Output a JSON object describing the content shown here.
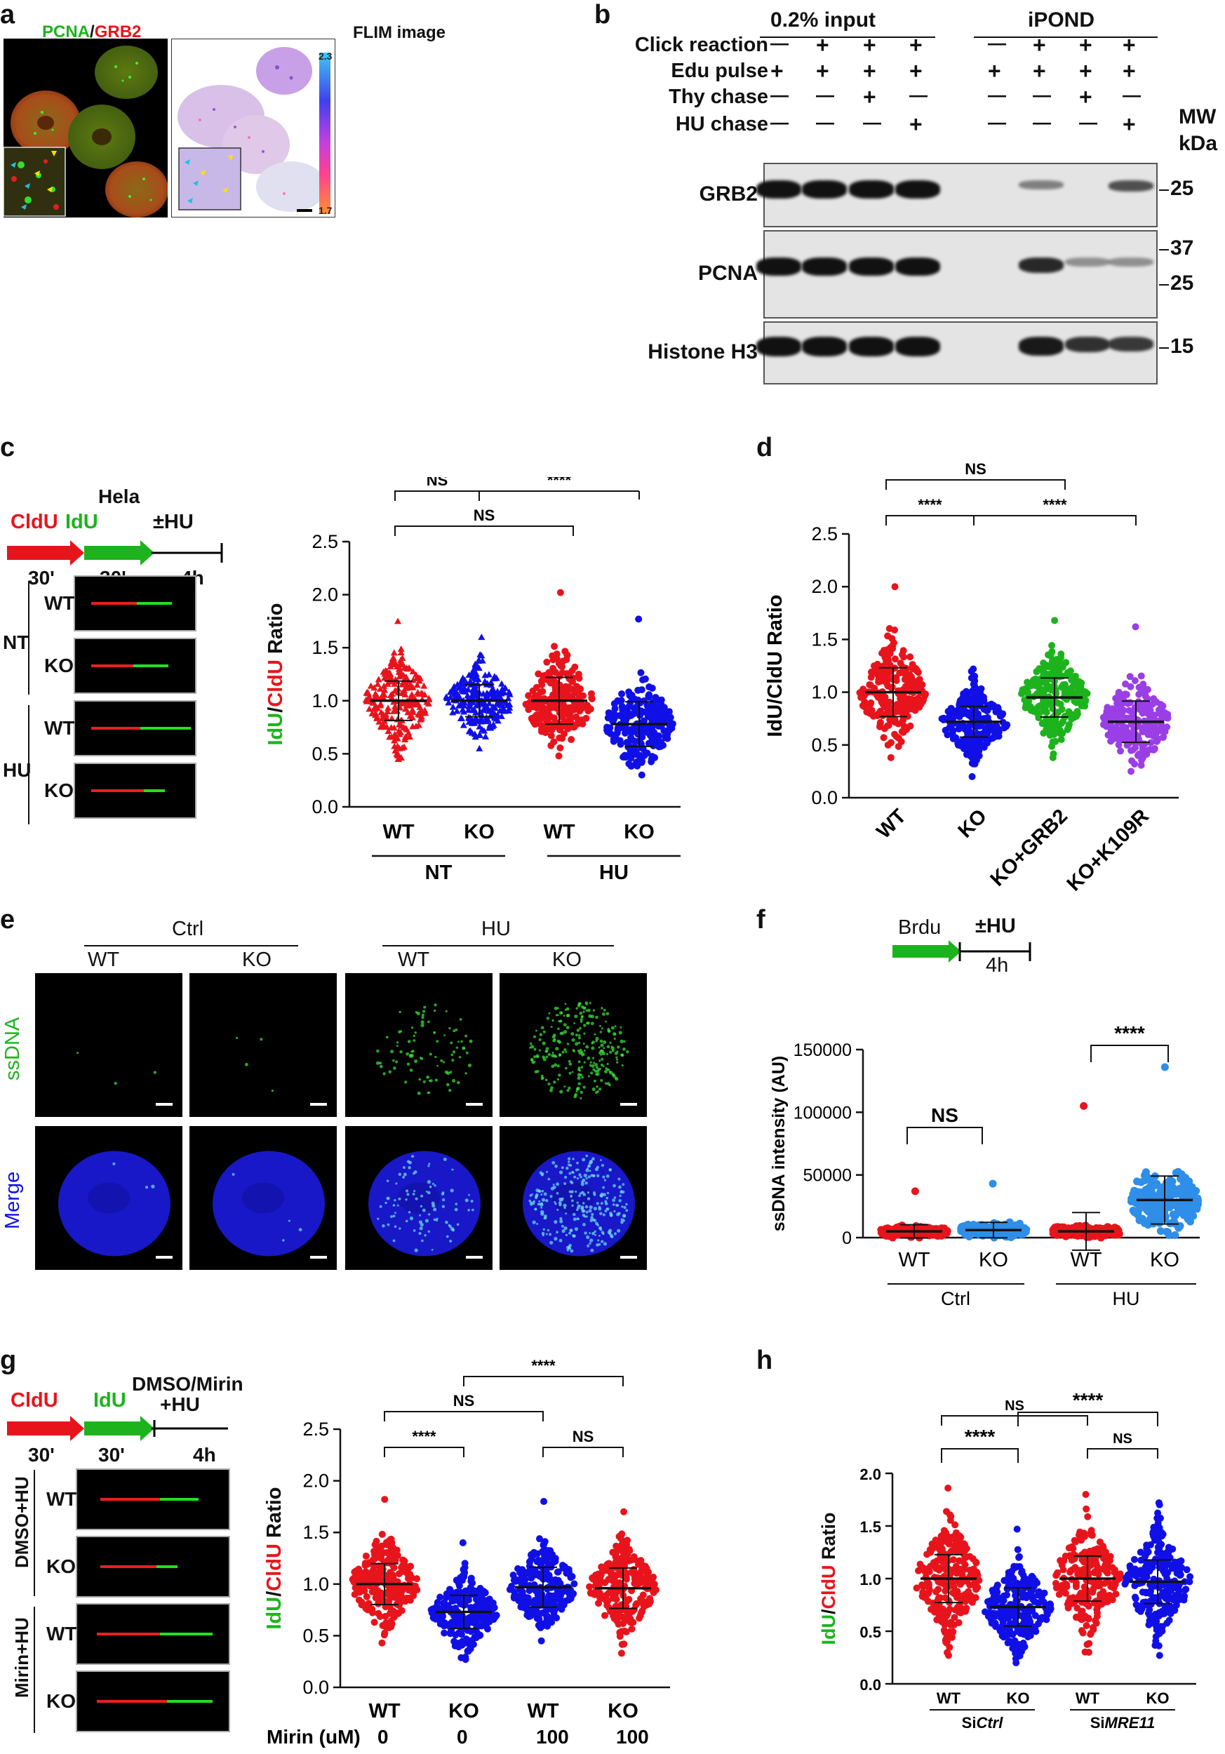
{
  "panel_labels": {
    "a": "a",
    "b": "b",
    "c": "c",
    "d": "d",
    "e": "e",
    "f": "f",
    "g": "g",
    "h": "h"
  },
  "a": {
    "left_title_green": "PCNA",
    "left_title_sep": "/",
    "left_title_red": "GRB2",
    "right_title": "FLIM image",
    "scale_max": "2.3",
    "scale_min": "1.7"
  },
  "b": {
    "group1": "0.2% input",
    "group2": "iPOND",
    "rows": [
      {
        "label": "Click reaction",
        "signs": [
          "—",
          "+",
          "+",
          "+",
          "—",
          "+",
          "+",
          "+"
        ]
      },
      {
        "label": "Edu pulse",
        "signs": [
          "+",
          "+",
          "+",
          "+",
          "+",
          "+",
          "+",
          "+"
        ]
      },
      {
        "label": "Thy chase",
        "signs": [
          "—",
          "—",
          "+",
          "—",
          "—",
          "—",
          "+",
          "—"
        ]
      },
      {
        "label": "HU chase",
        "signs": [
          "—",
          "—",
          "—",
          "+",
          "—",
          "—",
          "—",
          "+"
        ]
      }
    ],
    "mw_label": "MW",
    "kda_label": "kDa",
    "blots": [
      {
        "name": "GRB2",
        "markers": [
          "25"
        ]
      },
      {
        "name": "PCNA",
        "markers": [
          "37",
          "25"
        ]
      },
      {
        "name": "Histone H3",
        "markers": [
          "15"
        ]
      }
    ]
  },
  "c": {
    "cell_line": "Hela",
    "seg1": "CldU",
    "seg2": "IdU",
    "seg3": "±HU",
    "t1": "30'",
    "t2": "30'",
    "t3": "4h",
    "row_groups": [
      "NT",
      "HU"
    ],
    "row_labels": [
      "WT",
      "KO",
      "WT",
      "KO"
    ]
  },
  "e": {
    "groups": [
      "Ctrl",
      "HU"
    ],
    "cols": [
      "WT",
      "KO",
      "WT",
      "KO"
    ],
    "rows": [
      "ssDNA",
      "Merge"
    ]
  },
  "f": {
    "seg1": "Brdu",
    "seg2": "±HU",
    "t2": "4h"
  },
  "g": {
    "seg1": "CldU",
    "seg2": "IdU",
    "seg3a": "DMSO/Mirin",
    "seg3b": "+HU",
    "t1": "30'",
    "t2": "30'",
    "t3": "4h",
    "row_groups": [
      "DMSO+HU",
      "Mirin+HU"
    ],
    "row_labels": [
      "WT",
      "KO",
      "WT",
      "KO"
    ]
  },
  "colors": {
    "red": "#e8141c",
    "green": "#1db31d",
    "blue": "#1010e6",
    "purple": "#9a3ee6",
    "lightblue": "#2e8ee8"
  },
  "chart_data": [
    {
      "id": "c",
      "type": "scatter",
      "ylabel": "IdU/CldU Ratio",
      "ylabel_parts": [
        "IdU",
        "/",
        "CldU",
        " Ratio"
      ],
      "ylim": [
        0,
        2.5
      ],
      "yticks": [
        "0.0",
        "0.5",
        "1.0",
        "1.5",
        "2.0",
        "2.5"
      ],
      "categories": [
        "WT",
        "KO",
        "WT",
        "KO"
      ],
      "groups": [
        "NT",
        "HU"
      ],
      "series": [
        {
          "category": "WT",
          "group": "NT",
          "color": "red",
          "marker": "triangle",
          "median": 1.0,
          "min": 0.45,
          "max": 1.75
        },
        {
          "category": "KO",
          "group": "NT",
          "color": "blue",
          "marker": "triangle",
          "median": 1.0,
          "min": 0.55,
          "max": 1.6
        },
        {
          "category": "WT",
          "group": "HU",
          "color": "red",
          "marker": "circle",
          "median": 1.0,
          "min": 0.48,
          "max": 2.02
        },
        {
          "category": "KO",
          "group": "HU",
          "color": "blue",
          "marker": "circle",
          "median": 0.78,
          "min": 0.3,
          "max": 1.77
        }
      ],
      "annotations": [
        "NS",
        "****",
        "NS"
      ]
    },
    {
      "id": "d",
      "type": "scatter",
      "ylabel": "IdU/CldU Ratio",
      "ylim": [
        0,
        2.5
      ],
      "yticks": [
        "0.0",
        "0.5",
        "1.0",
        "1.5",
        "2.0",
        "2.5"
      ],
      "categories": [
        "WT",
        "KO",
        "KO+GRB2",
        "KO+K109R"
      ],
      "series": [
        {
          "category": "WT",
          "color": "red",
          "median": 1.0,
          "min": 0.38,
          "max": 2.0
        },
        {
          "category": "KO",
          "color": "blue",
          "median": 0.72,
          "min": 0.2,
          "max": 1.22
        },
        {
          "category": "KO+GRB2",
          "color": "green",
          "median": 0.95,
          "min": 0.38,
          "max": 1.68
        },
        {
          "category": "KO+K109R",
          "color": "purple",
          "median": 0.72,
          "min": 0.25,
          "max": 1.62
        }
      ],
      "annotations": [
        "NS",
        "****",
        "****"
      ]
    },
    {
      "id": "f",
      "type": "scatter",
      "ylabel": "ssDNA intensity (AU)",
      "ylim": [
        0,
        150000
      ],
      "yticks": [
        "0",
        "50000",
        "100000",
        "150000"
      ],
      "categories": [
        "WT",
        "KO",
        "WT",
        "KO"
      ],
      "groups": [
        "Ctrl",
        "HU"
      ],
      "series": [
        {
          "category": "WT",
          "group": "Ctrl",
          "color": "red",
          "median": 5000,
          "min": 0,
          "max": 37000
        },
        {
          "category": "KO",
          "group": "Ctrl",
          "color": "lightblue",
          "median": 6000,
          "min": 0,
          "max": 43000
        },
        {
          "category": "WT",
          "group": "HU",
          "color": "red",
          "median": 5000,
          "min": 0,
          "max": 105000
        },
        {
          "category": "KO",
          "group": "HU",
          "color": "lightblue",
          "median": 30000,
          "min": 2000,
          "max": 136000
        }
      ],
      "annotations": [
        "NS",
        "****"
      ]
    },
    {
      "id": "g",
      "type": "scatter",
      "ylabel": "IdU/CldU Ratio",
      "ylabel_parts": [
        "IdU",
        "/",
        "CldU",
        " Ratio"
      ],
      "ylim": [
        0,
        2.5
      ],
      "yticks": [
        "0.0",
        "0.5",
        "1.0",
        "1.5",
        "2.0",
        "2.5"
      ],
      "categories": [
        "WT",
        "KO",
        "WT",
        "KO"
      ],
      "row_label": "Mirin (uM)",
      "row_values": [
        "0",
        "0",
        "100",
        "100"
      ],
      "series": [
        {
          "category": "WT",
          "mirin": "0",
          "color": "red",
          "median": 1.0,
          "min": 0.43,
          "max": 1.82
        },
        {
          "category": "KO",
          "mirin": "0",
          "color": "blue",
          "median": 0.73,
          "min": 0.27,
          "max": 1.4
        },
        {
          "category": "WT",
          "mirin": "100",
          "color": "blue",
          "median": 0.97,
          "min": 0.45,
          "max": 1.8
        },
        {
          "category": "KO",
          "mirin": "100",
          "color": "red",
          "median": 0.96,
          "min": 0.33,
          "max": 1.7
        }
      ],
      "annotations": [
        "NS",
        "****",
        "****",
        "NS"
      ]
    },
    {
      "id": "h",
      "type": "scatter",
      "ylabel": "IdU/CldU Ratio",
      "ylabel_parts": [
        "IdU",
        "/",
        "CldU",
        " Ratio"
      ],
      "ylim": [
        0,
        2.0
      ],
      "yticks": [
        "0.0",
        "0.5",
        "1.0",
        "1.5",
        "2.0"
      ],
      "categories": [
        "WT",
        "KO",
        "WT",
        "KO"
      ],
      "groups_parts": [
        [
          "Si",
          "Ctrl"
        ],
        [
          "Si",
          "MRE11"
        ]
      ],
      "series": [
        {
          "category": "WT",
          "group": "SiCtrl",
          "color": "red",
          "median": 1.0,
          "min": 0.27,
          "max": 1.86
        },
        {
          "category": "KO",
          "group": "SiCtrl",
          "color": "blue",
          "median": 0.73,
          "min": 0.2,
          "max": 1.47
        },
        {
          "category": "WT",
          "group": "SiMRE11",
          "color": "red",
          "median": 1.0,
          "min": 0.3,
          "max": 1.8
        },
        {
          "category": "KO",
          "group": "SiMRE11",
          "color": "blue",
          "median": 0.97,
          "min": 0.27,
          "max": 1.72
        }
      ],
      "annotations": [
        "NS",
        "****",
        "****",
        "NS"
      ]
    }
  ]
}
